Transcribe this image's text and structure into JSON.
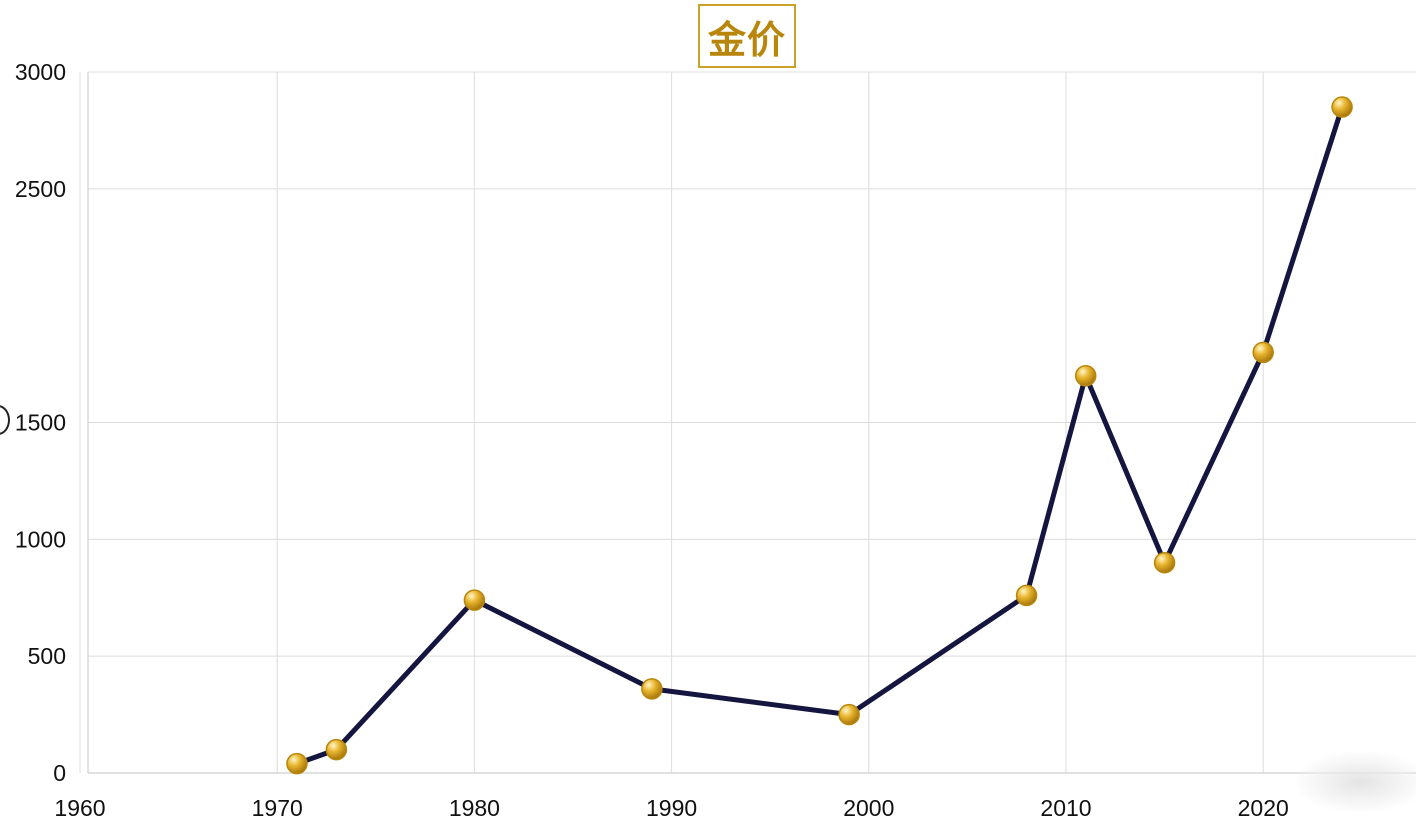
{
  "colors": {
    "line": "#14163f",
    "marker_fill": "#e8b52e",
    "marker_stroke": "#b8860b",
    "title": "#b8860b",
    "grid": "#dcdcdc"
  },
  "chart_data": {
    "type": "line",
    "title": "金价",
    "xlabel": "",
    "ylabel": "",
    "xlim": [
      1960,
      2027
    ],
    "ylim": [
      0,
      3000
    ],
    "grid": true,
    "x_tick_labels": [
      "1960",
      "1970",
      "1980",
      "1990",
      "2000",
      "2010",
      "2020"
    ],
    "y_tick_labels": [
      "0",
      "500",
      "1000",
      "1500",
      "2500",
      "3000"
    ],
    "series": [
      {
        "x": [
          1971,
          1973,
          1980,
          1989,
          1999,
          2008,
          2011,
          2015,
          2020,
          2024
        ],
        "y": [
          40,
          100,
          740,
          360,
          250,
          760,
          1700,
          900,
          1800,
          2850
        ]
      }
    ]
  }
}
